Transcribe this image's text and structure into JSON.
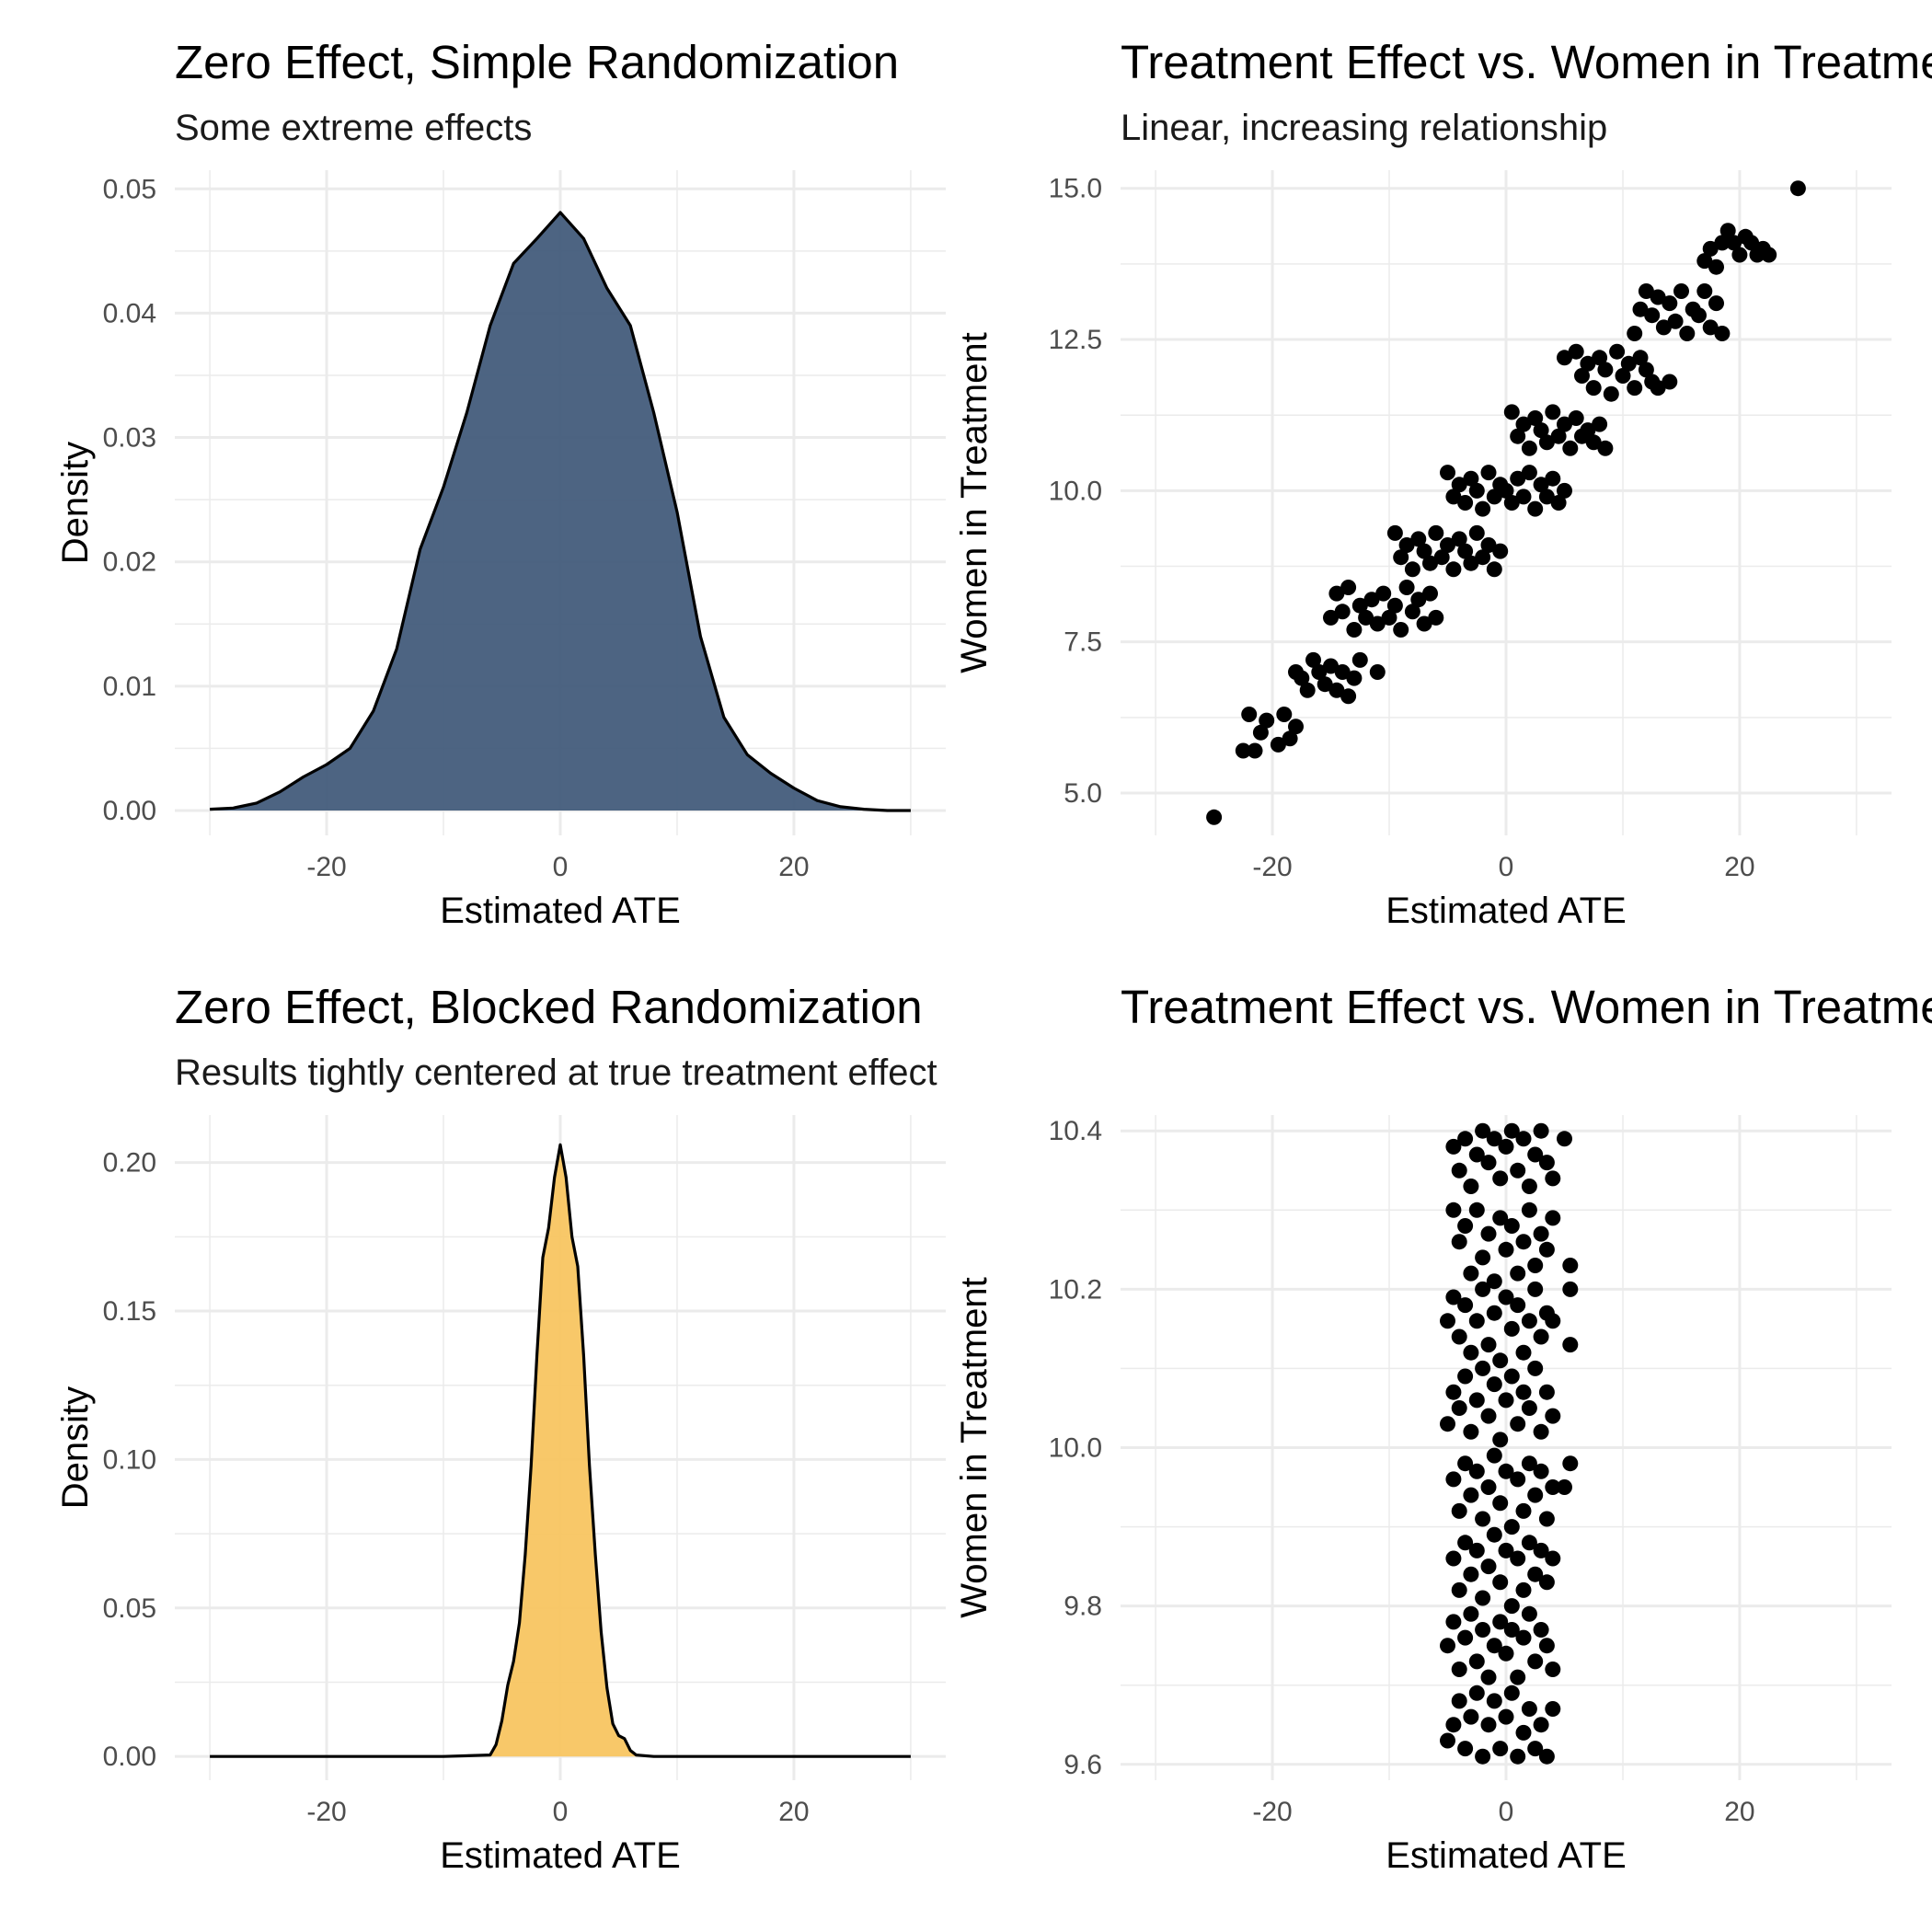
{
  "chart_data": [
    {
      "type": "area",
      "title": "Zero Effect, Simple Randomization",
      "subtitle": "Some extreme effects",
      "xlabel": "Estimated ATE",
      "ylabel": "Density",
      "xlim": [
        -33,
        33
      ],
      "ylim": [
        -0.002,
        0.0515
      ],
      "x_ticks": [
        -20,
        0,
        20
      ],
      "x_tick_labels": [
        "-20",
        "0",
        "20"
      ],
      "y_ticks": [
        0,
        0.01,
        0.02,
        0.03,
        0.04,
        0.05
      ],
      "y_tick_labels": [
        "0.00",
        "0.01",
        "0.02",
        "0.03",
        "0.04",
        "0.05"
      ],
      "fill_color": "#3F5878",
      "grid": true,
      "x": [
        -30,
        -28,
        -26,
        -24,
        -22,
        -20,
        -18,
        -16,
        -14,
        -12,
        -10,
        -8,
        -6,
        -4,
        -2,
        0,
        2,
        4,
        6,
        8,
        10,
        12,
        14,
        16,
        18,
        20,
        22,
        24,
        26,
        28,
        30
      ],
      "y": [
        0.0001,
        0.0002,
        0.0006,
        0.0015,
        0.0027,
        0.0037,
        0.005,
        0.008,
        0.013,
        0.021,
        0.026,
        0.032,
        0.039,
        0.044,
        0.046,
        0.0481,
        0.046,
        0.042,
        0.039,
        0.032,
        0.024,
        0.014,
        0.0075,
        0.0045,
        0.003,
        0.0018,
        0.0008,
        0.0003,
        0.0001,
        0.0,
        0.0
      ]
    },
    {
      "type": "scatter",
      "title": "Treatment Effect vs. Women in Treatment",
      "subtitle": "Linear, increasing relationship",
      "xlabel": "Estimated ATE",
      "ylabel": "Women in Treatment",
      "xlim": [
        -33,
        33
      ],
      "ylim": [
        4.3,
        15.3
      ],
      "x_ticks": [
        -20,
        0,
        20
      ],
      "x_tick_labels": [
        "-20",
        "0",
        "20"
      ],
      "y_ticks": [
        5,
        7.5,
        10,
        12.5,
        15
      ],
      "y_tick_labels": [
        "5.0",
        "7.5",
        "10.0",
        "12.5",
        "15.0"
      ],
      "point_color": "#000000",
      "grid": true,
      "points": [
        [
          -25,
          4.6
        ],
        [
          -22.5,
          5.7
        ],
        [
          -22,
          6.3
        ],
        [
          -21.5,
          5.7
        ],
        [
          -21,
          6.0
        ],
        [
          -20.5,
          6.2
        ],
        [
          -19.5,
          5.8
        ],
        [
          -19,
          6.3
        ],
        [
          -18.5,
          5.9
        ],
        [
          -18,
          6.1
        ],
        [
          -18,
          7.0
        ],
        [
          -17.5,
          6.9
        ],
        [
          -17,
          6.7
        ],
        [
          -16.5,
          7.2
        ],
        [
          -16,
          7.0
        ],
        [
          -15.5,
          6.8
        ],
        [
          -15,
          7.1
        ],
        [
          -14.5,
          6.7
        ],
        [
          -14,
          7.0
        ],
        [
          -13.5,
          6.6
        ],
        [
          -13,
          6.9
        ],
        [
          -12.5,
          7.2
        ],
        [
          -11,
          7.0
        ],
        [
          -15,
          7.9
        ],
        [
          -14.5,
          8.3
        ],
        [
          -14,
          8.0
        ],
        [
          -13.5,
          8.4
        ],
        [
          -13,
          7.7
        ],
        [
          -12.5,
          8.1
        ],
        [
          -12,
          7.9
        ],
        [
          -11.5,
          8.2
        ],
        [
          -11,
          7.8
        ],
        [
          -10.5,
          8.3
        ],
        [
          -10,
          7.9
        ],
        [
          -9.5,
          8.1
        ],
        [
          -9,
          7.7
        ],
        [
          -8.5,
          8.4
        ],
        [
          -8,
          8.0
        ],
        [
          -7.5,
          8.2
        ],
        [
          -7,
          7.8
        ],
        [
          -6.5,
          8.3
        ],
        [
          -6,
          7.9
        ],
        [
          -9.5,
          9.3
        ],
        [
          -9,
          8.9
        ],
        [
          -8.5,
          9.1
        ],
        [
          -8,
          8.7
        ],
        [
          -7.5,
          9.2
        ],
        [
          -7,
          9.0
        ],
        [
          -6.5,
          8.8
        ],
        [
          -6,
          9.3
        ],
        [
          -5.5,
          8.9
        ],
        [
          -5,
          9.1
        ],
        [
          -4.5,
          8.7
        ],
        [
          -4,
          9.2
        ],
        [
          -3.5,
          9.0
        ],
        [
          -3,
          8.8
        ],
        [
          -2.5,
          9.3
        ],
        [
          -2,
          8.9
        ],
        [
          -1.5,
          9.1
        ],
        [
          -1,
          8.7
        ],
        [
          -0.5,
          9.0
        ],
        [
          -5,
          10.3
        ],
        [
          -4.5,
          9.9
        ],
        [
          -4,
          10.1
        ],
        [
          -3.5,
          9.8
        ],
        [
          -3,
          10.2
        ],
        [
          -2.5,
          10.0
        ],
        [
          -2,
          9.7
        ],
        [
          -1.5,
          10.3
        ],
        [
          -1,
          9.9
        ],
        [
          -0.5,
          10.1
        ],
        [
          0,
          10.0
        ],
        [
          0.5,
          9.8
        ],
        [
          1,
          10.2
        ],
        [
          1.5,
          9.9
        ],
        [
          2,
          10.3
        ],
        [
          2.5,
          9.7
        ],
        [
          3,
          10.1
        ],
        [
          3.5,
          9.9
        ],
        [
          4,
          10.2
        ],
        [
          4.5,
          9.8
        ],
        [
          5,
          10.0
        ],
        [
          0.5,
          11.3
        ],
        [
          1,
          10.9
        ],
        [
          1.5,
          11.1
        ],
        [
          2,
          10.7
        ],
        [
          2.5,
          11.2
        ],
        [
          3,
          11.0
        ],
        [
          3.5,
          10.8
        ],
        [
          4,
          11.3
        ],
        [
          4.5,
          10.9
        ],
        [
          5,
          11.1
        ],
        [
          5.5,
          10.7
        ],
        [
          6,
          11.2
        ],
        [
          6.5,
          10.9
        ],
        [
          7,
          11.0
        ],
        [
          7.5,
          10.8
        ],
        [
          8,
          11.1
        ],
        [
          8.5,
          10.7
        ],
        [
          5,
          12.2
        ],
        [
          6,
          12.3
        ],
        [
          6.5,
          11.9
        ],
        [
          7,
          12.1
        ],
        [
          7.5,
          11.7
        ],
        [
          8,
          12.2
        ],
        [
          8.5,
          12.0
        ],
        [
          9,
          11.6
        ],
        [
          9.5,
          12.3
        ],
        [
          10,
          11.9
        ],
        [
          10.5,
          12.1
        ],
        [
          11,
          11.7
        ],
        [
          11.5,
          12.2
        ],
        [
          12,
          12.0
        ],
        [
          12.5,
          11.8
        ],
        [
          13,
          11.7
        ],
        [
          14,
          11.8
        ],
        [
          11,
          12.6
        ],
        [
          11.5,
          13.0
        ],
        [
          12,
          13.3
        ],
        [
          12.5,
          12.9
        ],
        [
          13,
          13.2
        ],
        [
          13.5,
          12.7
        ],
        [
          14,
          13.1
        ],
        [
          14.5,
          12.8
        ],
        [
          15,
          13.3
        ],
        [
          15.5,
          12.6
        ],
        [
          16,
          13.0
        ],
        [
          16.5,
          12.9
        ],
        [
          17,
          13.3
        ],
        [
          17.5,
          12.7
        ],
        [
          18,
          13.1
        ],
        [
          18.5,
          12.6
        ],
        [
          17,
          13.8
        ],
        [
          17.5,
          14.0
        ],
        [
          18,
          13.7
        ],
        [
          18.5,
          14.1
        ],
        [
          19,
          14.3
        ],
        [
          19.5,
          14.1
        ],
        [
          20,
          13.9
        ],
        [
          20.5,
          14.2
        ],
        [
          21,
          14.1
        ],
        [
          21.5,
          13.9
        ],
        [
          22,
          14.0
        ],
        [
          22.5,
          13.9
        ],
        [
          25,
          15.0
        ]
      ]
    },
    {
      "type": "area",
      "title": "Zero Effect, Blocked Randomization",
      "subtitle": "Results tightly centered at true treatment effect",
      "xlabel": "Estimated ATE",
      "ylabel": "Density",
      "xlim": [
        -33,
        33
      ],
      "ylim": [
        -0.008,
        0.216
      ],
      "x_ticks": [
        -20,
        0,
        20
      ],
      "x_tick_labels": [
        "-20",
        "0",
        "20"
      ],
      "y_ticks": [
        0,
        0.05,
        0.1,
        0.15,
        0.2
      ],
      "y_tick_labels": [
        "0.00",
        "0.05",
        "0.10",
        "0.15",
        "0.20"
      ],
      "fill_color": "#F8C45E",
      "grid": true,
      "x": [
        -30,
        -10,
        -6,
        -5.5,
        -5,
        -4.5,
        -4,
        -3.5,
        -3,
        -2.5,
        -2,
        -1.5,
        -1,
        -0.5,
        0,
        0.5,
        1,
        1.5,
        2,
        2.5,
        3,
        3.5,
        4,
        4.5,
        5,
        5.5,
        6,
        6.5,
        8,
        30
      ],
      "y": [
        0,
        0,
        0.0005,
        0.004,
        0.012,
        0.024,
        0.032,
        0.045,
        0.068,
        0.098,
        0.135,
        0.168,
        0.178,
        0.195,
        0.206,
        0.195,
        0.175,
        0.165,
        0.135,
        0.098,
        0.068,
        0.042,
        0.023,
        0.011,
        0.007,
        0.006,
        0.002,
        0.0005,
        0,
        0
      ]
    },
    {
      "type": "scatter",
      "title": "Treatment Effect vs. Women in Treatment",
      "subtitle": "",
      "xlabel": "Estimated ATE",
      "ylabel": "Women in Treatment",
      "xlim": [
        -33,
        33
      ],
      "ylim": [
        9.58,
        10.42
      ],
      "x_ticks": [
        -20,
        0,
        20
      ],
      "x_tick_labels": [
        "-20",
        "0",
        "20"
      ],
      "y_ticks": [
        9.6,
        9.8,
        10.0,
        10.2,
        10.4
      ],
      "y_tick_labels": [
        "9.6",
        "9.8",
        "10.0",
        "10.2",
        "10.4"
      ],
      "point_color": "#000000",
      "grid": true,
      "points": [
        [
          -4.5,
          10.38
        ],
        [
          -4,
          10.35
        ],
        [
          -3.5,
          10.39
        ],
        [
          -3,
          10.33
        ],
        [
          -2.5,
          10.37
        ],
        [
          -2,
          10.4
        ],
        [
          -1.5,
          10.36
        ],
        [
          -1,
          10.39
        ],
        [
          -0.5,
          10.34
        ],
        [
          0,
          10.38
        ],
        [
          0.5,
          10.4
        ],
        [
          1,
          10.35
        ],
        [
          1.5,
          10.39
        ],
        [
          2,
          10.33
        ],
        [
          2.5,
          10.37
        ],
        [
          3,
          10.4
        ],
        [
          3.5,
          10.36
        ],
        [
          4,
          10.34
        ],
        [
          5,
          10.39
        ],
        [
          -4.5,
          10.3
        ],
        [
          -4,
          10.26
        ],
        [
          -3.5,
          10.28
        ],
        [
          -3,
          10.22
        ],
        [
          -2.5,
          10.3
        ],
        [
          -2,
          10.24
        ],
        [
          -1.5,
          10.27
        ],
        [
          -1,
          10.21
        ],
        [
          -0.5,
          10.29
        ],
        [
          0,
          10.25
        ],
        [
          0.5,
          10.28
        ],
        [
          1,
          10.22
        ],
        [
          1.5,
          10.26
        ],
        [
          2,
          10.3
        ],
        [
          2.5,
          10.23
        ],
        [
          3,
          10.27
        ],
        [
          3.5,
          10.25
        ],
        [
          4,
          10.29
        ],
        [
          -5,
          10.16
        ],
        [
          -4.5,
          10.19
        ],
        [
          -4,
          10.14
        ],
        [
          -3.5,
          10.18
        ],
        [
          -3,
          10.12
        ],
        [
          -2.5,
          10.16
        ],
        [
          -2,
          10.2
        ],
        [
          -1.5,
          10.13
        ],
        [
          -1,
          10.17
        ],
        [
          -0.5,
          10.11
        ],
        [
          0,
          10.19
        ],
        [
          0.5,
          10.15
        ],
        [
          1,
          10.18
        ],
        [
          1.5,
          10.12
        ],
        [
          2,
          10.16
        ],
        [
          2.5,
          10.2
        ],
        [
          3,
          10.14
        ],
        [
          3.5,
          10.17
        ],
        [
          5.5,
          10.23
        ],
        [
          5.5,
          10.2
        ],
        [
          5.5,
          10.13
        ],
        [
          4,
          10.16
        ],
        [
          -5,
          10.03
        ],
        [
          -4.5,
          10.07
        ],
        [
          -4,
          10.05
        ],
        [
          -3.5,
          10.09
        ],
        [
          -3,
          10.02
        ],
        [
          -2.5,
          10.06
        ],
        [
          -2,
          10.1
        ],
        [
          -1.5,
          10.04
        ],
        [
          -1,
          10.08
        ],
        [
          -0.5,
          10.01
        ],
        [
          0,
          10.06
        ],
        [
          0.5,
          10.09
        ],
        [
          1,
          10.03
        ],
        [
          1.5,
          10.07
        ],
        [
          2,
          10.05
        ],
        [
          2.5,
          10.1
        ],
        [
          3,
          10.02
        ],
        [
          3.5,
          10.07
        ],
        [
          4,
          10.04
        ],
        [
          -4.5,
          9.96
        ],
        [
          -4,
          9.92
        ],
        [
          -3.5,
          9.98
        ],
        [
          -3,
          9.94
        ],
        [
          -2.5,
          9.97
        ],
        [
          -2,
          9.91
        ],
        [
          -1.5,
          9.95
        ],
        [
          -1,
          9.99
        ],
        [
          -0.5,
          9.93
        ],
        [
          0,
          9.97
        ],
        [
          0.5,
          9.9
        ],
        [
          1,
          9.96
        ],
        [
          1.5,
          9.92
        ],
        [
          2,
          9.98
        ],
        [
          2.5,
          9.94
        ],
        [
          3,
          9.97
        ],
        [
          3.5,
          9.91
        ],
        [
          4,
          9.95
        ],
        [
          5.5,
          9.98
        ],
        [
          5,
          9.95
        ],
        [
          -4.5,
          9.86
        ],
        [
          -4,
          9.82
        ],
        [
          -3.5,
          9.88
        ],
        [
          -3,
          9.84
        ],
        [
          -2.5,
          9.87
        ],
        [
          -2,
          9.81
        ],
        [
          -1.5,
          9.85
        ],
        [
          -1,
          9.89
        ],
        [
          -0.5,
          9.83
        ],
        [
          0,
          9.87
        ],
        [
          0.5,
          9.8
        ],
        [
          1,
          9.86
        ],
        [
          1.5,
          9.82
        ],
        [
          2,
          9.88
        ],
        [
          2.5,
          9.84
        ],
        [
          3,
          9.87
        ],
        [
          3.5,
          9.83
        ],
        [
          4,
          9.86
        ],
        [
          -5,
          9.75
        ],
        [
          -4.5,
          9.78
        ],
        [
          -4,
          9.72
        ],
        [
          -3.5,
          9.76
        ],
        [
          -3,
          9.79
        ],
        [
          -2.5,
          9.73
        ],
        [
          -2,
          9.77
        ],
        [
          -1.5,
          9.71
        ],
        [
          -1,
          9.75
        ],
        [
          -0.5,
          9.78
        ],
        [
          0,
          9.74
        ],
        [
          0.5,
          9.77
        ],
        [
          1,
          9.71
        ],
        [
          1.5,
          9.76
        ],
        [
          2,
          9.79
        ],
        [
          2.5,
          9.73
        ],
        [
          3,
          9.77
        ],
        [
          3.5,
          9.75
        ],
        [
          4,
          9.72
        ],
        [
          -5,
          9.63
        ],
        [
          -4.5,
          9.65
        ],
        [
          -4,
          9.68
        ],
        [
          -3.5,
          9.62
        ],
        [
          -3,
          9.66
        ],
        [
          -2.5,
          9.69
        ],
        [
          -2,
          9.61
        ],
        [
          -1.5,
          9.65
        ],
        [
          -1,
          9.68
        ],
        [
          -0.5,
          9.62
        ],
        [
          0,
          9.66
        ],
        [
          0.5,
          9.69
        ],
        [
          1,
          9.61
        ],
        [
          1.5,
          9.64
        ],
        [
          2,
          9.67
        ],
        [
          2.5,
          9.62
        ],
        [
          3,
          9.65
        ],
        [
          3.5,
          9.61
        ],
        [
          4,
          9.67
        ]
      ]
    }
  ]
}
